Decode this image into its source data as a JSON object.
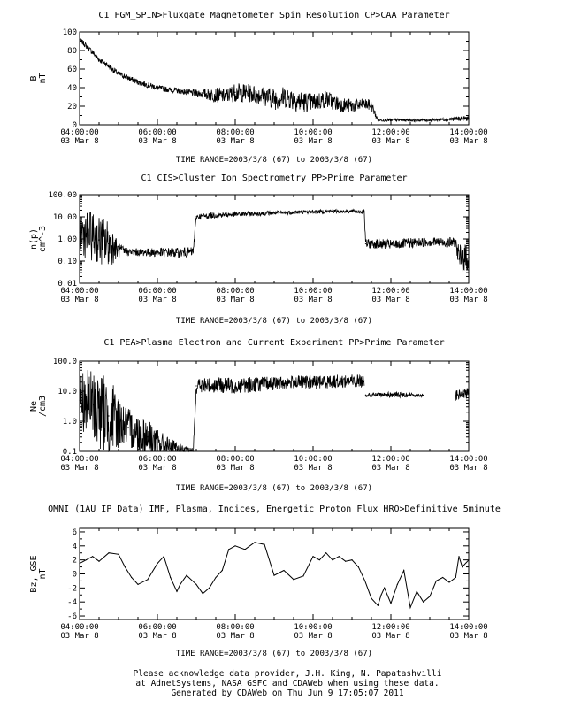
{
  "footer": {
    "line1": "Please acknowledge data provider, J.H. King, N. Papatashvilli",
    "line2": "at AdnetSystems, NASA GSFC and CDAWeb when using these data.",
    "line3": "Generated by CDAWeb on Thu Jun  9 17:05:07 2011"
  },
  "chart_data": [
    {
      "type": "line",
      "title": "C1  FGM_SPIN>Fluxgate Magnetometer Spin Resolution  CP>CAA Parameter",
      "ylabel": [
        "B",
        "nT"
      ],
      "ylim": [
        0,
        100
      ],
      "yscale": "linear",
      "yticks": [
        0,
        20,
        40,
        60,
        80,
        100
      ],
      "yticklabels": [
        "0",
        "20",
        "40",
        "60",
        "80",
        "100"
      ],
      "xlim": [
        "04:00:00",
        "14:00:00"
      ],
      "xticks": [
        "04:00:00",
        "06:00:00",
        "08:00:00",
        "10:00:00",
        "12:00:00",
        "14:00:00"
      ],
      "xticks_date": "03 Mar  8",
      "time_range": "TIME RANGE=2003/3/8 (67) to 2003/3/8 (67)",
      "series": [
        {
          "x": [
            "04:00",
            "04:10",
            "04:20",
            "04:30",
            "04:40",
            "04:50",
            "05:00",
            "05:10",
            "05:20",
            "05:30",
            "05:40",
            "05:50",
            "06:00",
            "06:15",
            "06:30",
            "06:45",
            "07:00",
            "07:15",
            "07:30",
            "07:45",
            "08:00",
            "08:20",
            "08:40",
            "09:00",
            "09:20",
            "09:40",
            "10:00",
            "10:20",
            "10:40",
            "11:00",
            "11:20",
            "11:30",
            "11:40",
            "12:00",
            "12:30",
            "13:00",
            "13:30",
            "14:00"
          ],
          "values": [
            92,
            85,
            78,
            70,
            66,
            60,
            55,
            52,
            49,
            46,
            44,
            42,
            40,
            38,
            37,
            35,
            34,
            33,
            32,
            31,
            35,
            34,
            32,
            28,
            30,
            25,
            24,
            28,
            22,
            20,
            22,
            21,
            5,
            5,
            5,
            5,
            6,
            7
          ],
          "noise": [
            2,
            3,
            3,
            3,
            3,
            3,
            3,
            3,
            3,
            3,
            3,
            3,
            3,
            3,
            3,
            3,
            4,
            6,
            8,
            8,
            10,
            10,
            10,
            12,
            12,
            12,
            10,
            10,
            8,
            8,
            6,
            6,
            1.5,
            1.5,
            1.5,
            1.5,
            2,
            3
          ]
        }
      ]
    },
    {
      "type": "line",
      "title": "C1  CIS>Cluster Ion Spectrometry  PP>Prime Parameter",
      "ylabel": [
        "n(p)",
        "cm^-3"
      ],
      "ylim": [
        0.01,
        100
      ],
      "yscale": "log",
      "yticks": [
        0.01,
        0.1,
        1,
        10,
        100
      ],
      "yticklabels": [
        "0.01",
        "0.10",
        "1.00",
        "10.00",
        "100.00"
      ],
      "xlim": [
        "04:00:00",
        "14:00:00"
      ],
      "xticks": [
        "04:00:00",
        "06:00:00",
        "08:00:00",
        "10:00:00",
        "12:00:00",
        "14:00:00"
      ],
      "xticks_date": "03 Mar  8",
      "time_range": "TIME RANGE=2003/3/8 (67) to 2003/3/8 (67)",
      "series": [
        {
          "x": [
            "04:00",
            "04:15",
            "04:30",
            "04:45",
            "05:00",
            "05:15",
            "05:30",
            "05:45",
            "06:00",
            "06:15",
            "06:30",
            "06:45",
            "06:55",
            "07:00",
            "07:30",
            "08:00",
            "08:30",
            "09:00",
            "09:30",
            "10:00",
            "10:30",
            "11:00",
            "11:19",
            "11:21",
            "11:45",
            "12:00",
            "12:30",
            "13:00",
            "13:20",
            "13:40",
            "13:45",
            "14:00"
          ],
          "values": [
            2.0,
            1.5,
            0.9,
            0.6,
            0.3,
            0.26,
            0.25,
            0.25,
            0.24,
            0.25,
            0.24,
            0.25,
            0.26,
            10,
            12,
            13,
            14,
            15,
            16,
            17,
            18,
            18,
            17,
            0.6,
            0.6,
            0.55,
            0.65,
            0.75,
            0.7,
            0.7,
            0.12,
            0.15
          ],
          "noise": [
            0.5,
            0.5,
            0.5,
            0.5,
            0.15,
            0.08,
            0.08,
            0.08,
            0.1,
            0.1,
            0.1,
            0.1,
            0.1,
            0.06,
            0.06,
            0.05,
            0.05,
            0.04,
            0.04,
            0.04,
            0.04,
            0.04,
            0.05,
            0.1,
            0.1,
            0.1,
            0.1,
            0.1,
            0.1,
            0.1,
            0.3,
            0.3
          ]
        }
      ]
    },
    {
      "type": "line",
      "title": "C1  PEA>Plasma Electron and Current Experiment  PP>Prime Parameter",
      "ylabel": [
        "Ne",
        "/cm3"
      ],
      "ylim": [
        0.1,
        100
      ],
      "yscale": "log",
      "yticks": [
        0.1,
        1,
        10,
        100
      ],
      "yticklabels": [
        "0.1",
        "1.0",
        "10.0",
        "100.0"
      ],
      "xlim": [
        "04:00:00",
        "14:00:00"
      ],
      "xticks": [
        "04:00:00",
        "06:00:00",
        "08:00:00",
        "10:00:00",
        "12:00:00",
        "14:00:00"
      ],
      "xticks_date": "03 Mar  8",
      "time_range": "TIME RANGE=2003/3/8 (67) to 2003/3/8 (67)",
      "series": [
        {
          "x": [
            "04:00",
            "04:15",
            "04:30",
            "04:45",
            "05:00",
            "05:15",
            "05:30",
            "05:45",
            "06:00",
            "06:15",
            "06:30",
            "06:45",
            "06:55",
            "07:00",
            "07:30",
            "08:00",
            "08:30",
            "09:00",
            "09:30",
            "10:00",
            "10:30",
            "11:00",
            "11:19"
          ],
          "values": [
            5.0,
            4.0,
            2.5,
            1.5,
            1.0,
            0.6,
            0.4,
            0.3,
            0.2,
            0.15,
            0.12,
            0.11,
            0.1,
            15,
            16,
            15,
            17,
            18,
            20,
            20,
            21,
            22,
            22
          ],
          "noise": [
            0.5,
            0.5,
            0.6,
            0.6,
            0.4,
            0.3,
            0.3,
            0.3,
            0.2,
            0.15,
            0.1,
            0.05,
            0.05,
            0.12,
            0.12,
            0.12,
            0.12,
            0.1,
            0.1,
            0.1,
            0.1,
            0.1,
            0.1
          ]
        },
        {
          "x": [
            "11:21",
            "11:45",
            "12:00",
            "12:30",
            "12:50"
          ],
          "values": [
            7.5,
            7.5,
            7.6,
            7.5,
            7.4
          ],
          "noise": [
            0.03,
            0.03,
            0.05,
            0.03,
            0.03
          ]
        },
        {
          "x": [
            "13:40",
            "13:50",
            "14:00"
          ],
          "values": [
            7.0,
            8.0,
            8.5
          ],
          "noise": [
            0.08,
            0.08,
            0.08
          ]
        }
      ]
    },
    {
      "type": "line",
      "title": "OMNI (1AU IP Data)  IMF, Plasma, Indices, Energetic Proton Flux  HRO>Definitive 5minute",
      "ylabel": [
        "Bz, GSE",
        "nT"
      ],
      "ylim": [
        -6.5,
        6.5
      ],
      "yscale": "linear",
      "yticks": [
        -6,
        -4,
        -2,
        0,
        2,
        4,
        6
      ],
      "yticklabels": [
        "-6",
        "-4",
        "-2",
        "0",
        "2",
        "4",
        "6"
      ],
      "xlim": [
        "04:00:00",
        "14:00:00"
      ],
      "xticks": [
        "04:00:00",
        "06:00:00",
        "08:00:00",
        "10:00:00",
        "12:00:00",
        "14:00:00"
      ],
      "xticks_date": "03 Mar  8",
      "time_range": "TIME RANGE=2003/3/8 (67) to 2003/3/8 (67)",
      "series": [
        {
          "x": [
            "04:00",
            "04:10",
            "04:20",
            "04:30",
            "04:45",
            "05:00",
            "05:10",
            "05:20",
            "05:30",
            "05:45",
            "06:00",
            "06:10",
            "06:20",
            "06:30",
            "06:35",
            "06:45",
            "07:00",
            "07:10",
            "07:20",
            "07:30",
            "07:40",
            "07:50",
            "08:00",
            "08:15",
            "08:30",
            "08:45",
            "09:00",
            "09:15",
            "09:30",
            "09:45",
            "10:00",
            "10:10",
            "10:20",
            "10:30",
            "10:40",
            "10:50",
            "11:00",
            "11:10",
            "11:20",
            "11:30",
            "11:40",
            "11:45",
            "11:50",
            "12:00",
            "12:10",
            "12:20",
            "12:30",
            "12:40",
            "12:50",
            "13:00",
            "13:10",
            "13:20",
            "13:30",
            "13:40",
            "13:45",
            "13:50",
            "14:00"
          ],
          "values": [
            1.5,
            2.0,
            2.5,
            1.8,
            3.0,
            2.8,
            1.0,
            -0.5,
            -1.5,
            -0.8,
            1.5,
            2.5,
            -0.5,
            -2.5,
            -1.5,
            -0.2,
            -1.5,
            -2.8,
            -2.0,
            -0.5,
            0.5,
            3.5,
            4.0,
            3.5,
            4.5,
            4.2,
            -0.2,
            0.5,
            -0.8,
            -0.3,
            2.5,
            2.0,
            3.0,
            2.0,
            2.5,
            1.8,
            2.0,
            1.0,
            -1.0,
            -3.5,
            -4.5,
            -3.0,
            -2.0,
            -4.2,
            -1.5,
            0.5,
            -4.8,
            -2.5,
            -4.0,
            -3.2,
            -1.0,
            -0.5,
            -1.2,
            -0.5,
            2.5,
            1.0,
            2.0
          ]
        }
      ]
    }
  ]
}
